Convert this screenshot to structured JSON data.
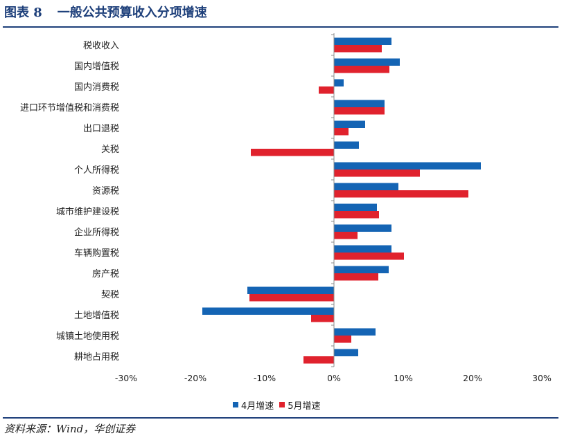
{
  "header": {
    "figure_no": "图表 8",
    "title": "一般公共预算收入分项增速"
  },
  "source": "资料来源：Wind，华创证券",
  "colors": {
    "series_apr": "#1464b4",
    "series_may": "#e0222d",
    "title": "#1d3f7a"
  },
  "chart_data": {
    "type": "bar",
    "orientation": "horizontal",
    "categories": [
      "税收收入",
      "国内增值税",
      "国内消费税",
      "进口环节增值税和消费税",
      "出口退税",
      "关税",
      "个人所得税",
      "资源税",
      "城市维护建设税",
      "企业所得税",
      "车辆购置税",
      "房产税",
      "契税",
      "土地增值税",
      "城镇土地使用税",
      "耕地占用税"
    ],
    "series": [
      {
        "name": "4月增速",
        "values": [
          8.3,
          9.5,
          1.4,
          7.3,
          4.5,
          3.6,
          21.2,
          9.3,
          6.2,
          8.3,
          8.3,
          7.9,
          -12.5,
          -19.0,
          6.0,
          3.5
        ]
      },
      {
        "name": "5月增速",
        "values": [
          6.9,
          8.0,
          -2.2,
          7.3,
          2.1,
          -12.0,
          12.4,
          19.4,
          6.5,
          3.4,
          10.1,
          6.4,
          -12.2,
          -3.3,
          2.5,
          -4.4
        ]
      }
    ],
    "xlim": [
      -30,
      30
    ],
    "xticks": [
      "-30%",
      "-20%",
      "-10%",
      "0%",
      "10%",
      "20%",
      "30%"
    ],
    "xlabel": "",
    "ylabel": "",
    "grid": false,
    "legend_position": "bottom"
  }
}
